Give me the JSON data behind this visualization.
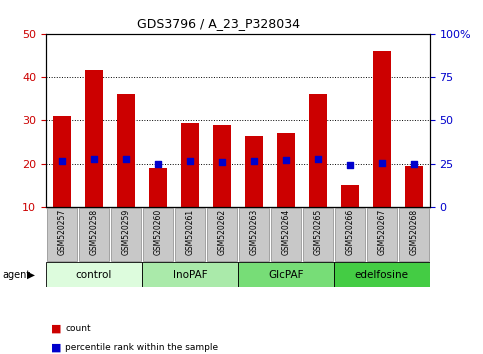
{
  "title": "GDS3796 / A_23_P328034",
  "samples": [
    "GSM520257",
    "GSM520258",
    "GSM520259",
    "GSM520260",
    "GSM520261",
    "GSM520262",
    "GSM520263",
    "GSM520264",
    "GSM520265",
    "GSM520266",
    "GSM520267",
    "GSM520268"
  ],
  "counts": [
    31,
    41.5,
    36,
    19,
    29.5,
    29,
    26.5,
    27,
    36,
    15,
    46,
    19.5
  ],
  "percentile_rank": [
    26.5,
    28,
    27.5,
    25,
    26.5,
    26,
    26.5,
    27,
    28,
    24,
    25.5,
    25
  ],
  "bar_color": "#cc0000",
  "scatter_color": "#0000cc",
  "ylim_left": [
    10,
    50
  ],
  "ylim_right": [
    0,
    100
  ],
  "yticks_left": [
    10,
    20,
    30,
    40,
    50
  ],
  "yticks_right": [
    0,
    25,
    50,
    75,
    100
  ],
  "yticklabels_right": [
    "0",
    "25",
    "50",
    "75",
    "100%"
  ],
  "agent_groups": [
    {
      "label": "control",
      "start": 0,
      "end": 3,
      "color": "#ddfcdd"
    },
    {
      "label": "InoPAF",
      "start": 3,
      "end": 6,
      "color": "#aaeaaa"
    },
    {
      "label": "GlcPAF",
      "start": 6,
      "end": 9,
      "color": "#77dd77"
    },
    {
      "label": "edelfosine",
      "start": 9,
      "end": 12,
      "color": "#44cc44"
    }
  ],
  "legend_items": [
    {
      "label": "count",
      "color": "#cc0000"
    },
    {
      "label": "percentile rank within the sample",
      "color": "#0000cc"
    }
  ],
  "agent_label": "agent",
  "grid_color": "#000000",
  "tick_label_color_left": "#cc0000",
  "tick_label_color_right": "#0000cc",
  "bar_width": 0.55,
  "scatter_size": 25,
  "xtick_bg": "#c8c8c8"
}
